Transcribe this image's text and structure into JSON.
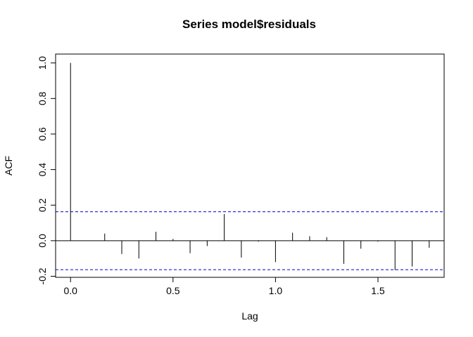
{
  "chart_data": {
    "type": "bar",
    "title": "Series  model$residuals",
    "xlabel": "Lag",
    "ylabel": "ACF",
    "xlim": [
      -0.0729,
      1.8229
    ],
    "ylim": [
      -0.206,
      1.05
    ],
    "x_ticks": [
      0,
      0.5,
      1,
      1.5
    ],
    "x_tick_labels": [
      "0.0",
      "0.5",
      "1.0",
      "1.5"
    ],
    "y_ticks": [
      -0.2,
      0,
      0.2,
      0.4,
      0.6,
      0.8,
      1
    ],
    "y_tick_labels": [
      "-0.2",
      "0.0",
      "0.2",
      "0.4",
      "0.6",
      "0.8",
      "1.0"
    ],
    "lags": [
      0,
      0.0833,
      0.1667,
      0.25,
      0.3333,
      0.4167,
      0.5,
      0.5833,
      0.6667,
      0.75,
      0.8333,
      0.9167,
      1,
      1.0833,
      1.1667,
      1.25,
      1.3333,
      1.4167,
      1.5,
      1.5833,
      1.6667,
      1.75
    ],
    "acf": [
      1,
      0,
      0.04,
      -0.075,
      -0.1,
      0.05,
      0.01,
      -0.07,
      -0.03,
      0.15,
      -0.095,
      -0.005,
      -0.12,
      0.045,
      0.025,
      0.02,
      -0.13,
      -0.045,
      -0.005,
      -0.165,
      -0.145,
      -0.04
    ],
    "conf_limit": 0.163,
    "conf_line_color": "#0000CD",
    "line_color": "#000000",
    "grid": false
  }
}
